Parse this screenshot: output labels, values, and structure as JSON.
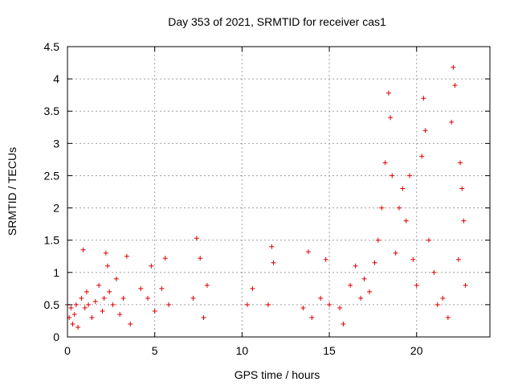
{
  "chart_data": {
    "type": "scatter",
    "title": "Day 353 of 2021, SRMTID for receiver cas1",
    "xlabel": "GPS time / hours",
    "ylabel": "SRMTID / TECUs",
    "xlim": [
      0,
      24.2
    ],
    "ylim": [
      0,
      4.5
    ],
    "x_ticks": [
      0,
      5,
      10,
      15,
      20
    ],
    "x_tick_labels": [
      "0",
      "5",
      "10",
      "15",
      "20"
    ],
    "y_ticks": [
      0,
      0.5,
      1,
      1.5,
      2,
      2.5,
      3,
      3.5,
      4,
      4.5
    ],
    "y_tick_labels": [
      "0",
      "0.5",
      "1",
      "1.5",
      "2",
      "2.5",
      "3",
      "3.5",
      "4",
      "4.5"
    ],
    "grid": true,
    "marker": "plus",
    "series_color": "#e00000",
    "series": [
      {
        "name": "SRMTID",
        "description": "dense clusters of points; key visible values",
        "points": [
          [
            0.0,
            0.5
          ],
          [
            0.1,
            0.3
          ],
          [
            0.2,
            0.45
          ],
          [
            0.3,
            0.2
          ],
          [
            0.4,
            0.35
          ],
          [
            0.5,
            0.5
          ],
          [
            0.6,
            0.15
          ],
          [
            0.8,
            0.6
          ],
          [
            0.9,
            1.35
          ],
          [
            1.0,
            0.45
          ],
          [
            1.1,
            0.7
          ],
          [
            1.2,
            0.5
          ],
          [
            1.4,
            0.3
          ],
          [
            1.6,
            0.55
          ],
          [
            1.8,
            0.8
          ],
          [
            2.0,
            0.4
          ],
          [
            2.1,
            0.6
          ],
          [
            2.2,
            1.3
          ],
          [
            2.3,
            1.1
          ],
          [
            2.4,
            0.7
          ],
          [
            2.6,
            0.5
          ],
          [
            2.8,
            0.9
          ],
          [
            3.0,
            0.35
          ],
          [
            3.2,
            0.6
          ],
          [
            3.4,
            1.25
          ],
          [
            3.6,
            0.2
          ],
          [
            4.2,
            0.75
          ],
          [
            4.6,
            0.6
          ],
          [
            4.8,
            1.1
          ],
          [
            5.0,
            0.4
          ],
          [
            5.4,
            0.75
          ],
          [
            5.6,
            1.22
          ],
          [
            5.8,
            0.5
          ],
          [
            7.2,
            0.6
          ],
          [
            7.4,
            1.53
          ],
          [
            7.6,
            1.22
          ],
          [
            7.8,
            0.3
          ],
          [
            8.0,
            0.8
          ],
          [
            10.3,
            0.5
          ],
          [
            10.6,
            0.75
          ],
          [
            11.5,
            0.5
          ],
          [
            11.7,
            1.4
          ],
          [
            11.8,
            1.15
          ],
          [
            13.5,
            0.45
          ],
          [
            13.8,
            1.32
          ],
          [
            14.0,
            0.3
          ],
          [
            14.5,
            0.6
          ],
          [
            14.8,
            1.2
          ],
          [
            15.0,
            0.5
          ],
          [
            15.6,
            0.45
          ],
          [
            15.8,
            0.2
          ],
          [
            16.2,
            0.8
          ],
          [
            16.5,
            1.1
          ],
          [
            16.8,
            0.6
          ],
          [
            17.0,
            0.9
          ],
          [
            17.3,
            0.7
          ],
          [
            17.6,
            1.15
          ],
          [
            17.8,
            1.5
          ],
          [
            18.0,
            2.0
          ],
          [
            18.2,
            2.7
          ],
          [
            18.4,
            3.78
          ],
          [
            18.5,
            3.4
          ],
          [
            18.6,
            2.5
          ],
          [
            18.8,
            1.3
          ],
          [
            19.0,
            2.0
          ],
          [
            19.2,
            2.3
          ],
          [
            19.4,
            1.8
          ],
          [
            19.6,
            2.5
          ],
          [
            19.8,
            1.2
          ],
          [
            20.0,
            0.8
          ],
          [
            20.3,
            2.8
          ],
          [
            20.4,
            3.7
          ],
          [
            20.5,
            3.2
          ],
          [
            20.7,
            1.5
          ],
          [
            21.0,
            1.0
          ],
          [
            21.2,
            0.5
          ],
          [
            21.5,
            0.6
          ],
          [
            21.8,
            0.3
          ],
          [
            22.0,
            3.33
          ],
          [
            22.1,
            4.18
          ],
          [
            22.2,
            3.9
          ],
          [
            22.4,
            1.2
          ],
          [
            22.5,
            2.7
          ],
          [
            22.6,
            2.3
          ],
          [
            22.7,
            1.8
          ],
          [
            22.8,
            0.8
          ]
        ]
      }
    ]
  }
}
